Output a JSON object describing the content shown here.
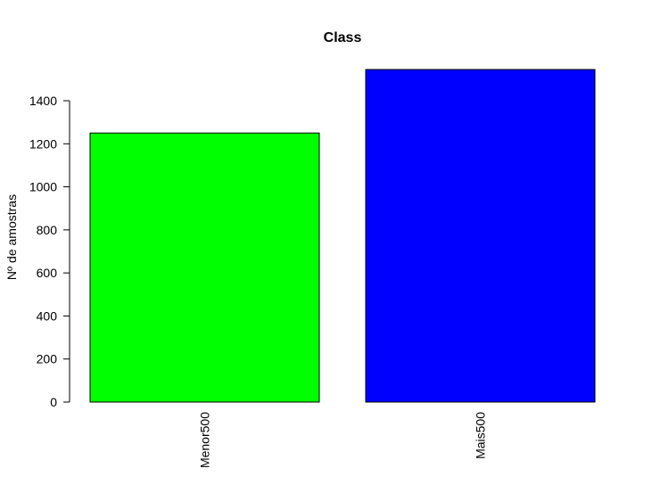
{
  "chart_data": {
    "type": "bar",
    "title": "Class",
    "ylabel": "Nº de amostras",
    "categories": [
      "Menor500",
      "Mais500"
    ],
    "values": [
      1250,
      1545
    ],
    "colors": [
      "#00ff00",
      "#0000ff"
    ],
    "ylim": [
      0,
      1600
    ],
    "yticks": [
      0,
      200,
      400,
      600,
      800,
      1000,
      1200,
      1400
    ]
  }
}
